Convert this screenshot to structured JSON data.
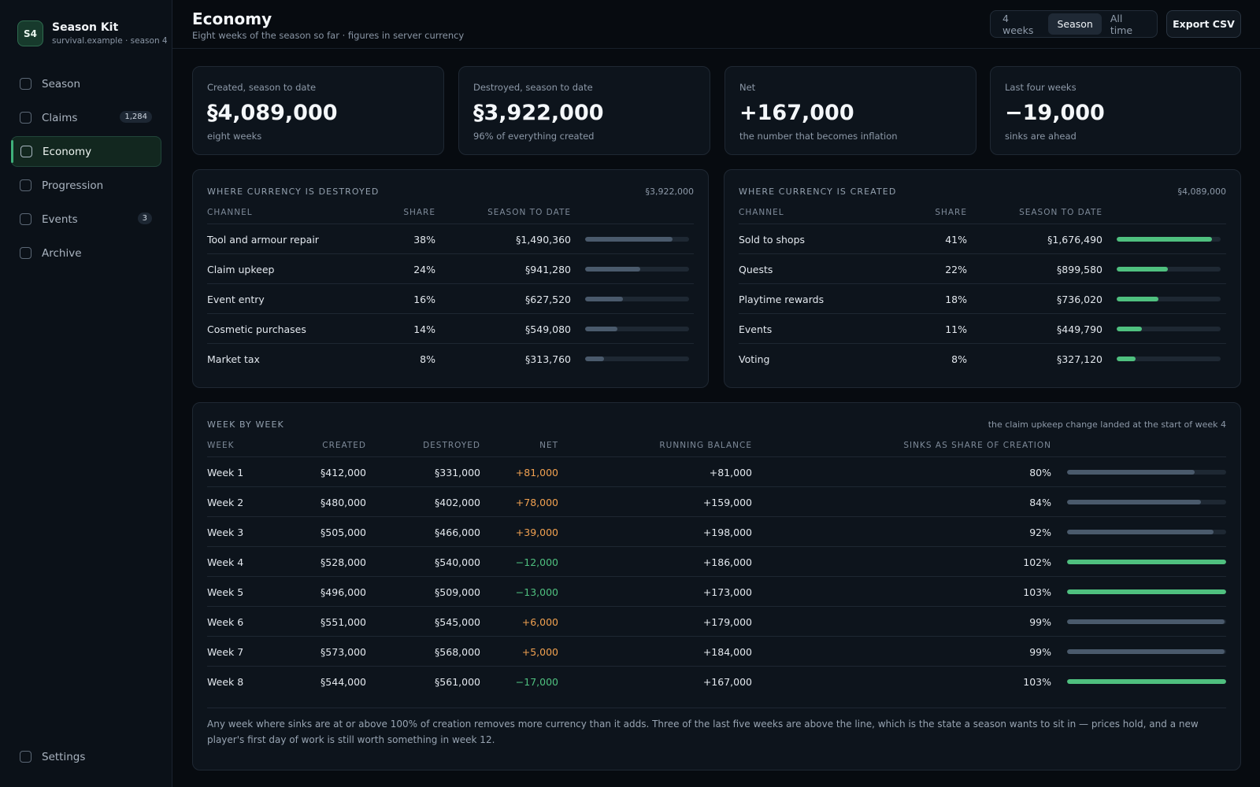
{
  "brand": {
    "badge": "S4",
    "name": "Season Kit",
    "sub": "survival.example · season 4"
  },
  "nav": [
    {
      "label": "Season",
      "count": null,
      "active": false
    },
    {
      "label": "Claims",
      "count": "1,284",
      "active": false
    },
    {
      "label": "Economy",
      "count": null,
      "active": true
    },
    {
      "label": "Progression",
      "count": null,
      "active": false
    },
    {
      "label": "Events",
      "count": "3",
      "active": false
    },
    {
      "label": "Archive",
      "count": null,
      "active": false
    }
  ],
  "settings_label": "Settings",
  "header": {
    "title": "Economy",
    "subtitle": "Eight weeks of the season so far · figures in server currency",
    "ranges": [
      "4 weeks",
      "Season",
      "All time"
    ],
    "active_range": "Season",
    "export_label": "Export CSV"
  },
  "kpis": [
    {
      "label": "Created, season to date",
      "value": "§4,089,000",
      "note": "eight weeks"
    },
    {
      "label": "Destroyed, season to date",
      "value": "§3,922,000",
      "note": "96% of everything created"
    },
    {
      "label": "Net",
      "value": "+167,000",
      "note": "the number that becomes inflation"
    },
    {
      "label": "Last four weeks",
      "value": "−19,000",
      "note": "sinks are ahead"
    }
  ],
  "destroyed": {
    "title": "WHERE CURRENCY IS DESTROYED",
    "total": "§3,922,000",
    "headers": {
      "channel": "CHANNEL",
      "share": "SHARE",
      "std": "SEASON TO DATE"
    },
    "rows": [
      {
        "channel": "Tool and armour repair",
        "share": "38%",
        "amount": "§1,490,360",
        "fill": 0.84
      },
      {
        "channel": "Claim upkeep",
        "share": "24%",
        "amount": "§941,280",
        "fill": 0.53
      },
      {
        "channel": "Event entry",
        "share": "16%",
        "amount": "§627,520",
        "fill": 0.36
      },
      {
        "channel": "Cosmetic purchases",
        "share": "14%",
        "amount": "§549,080",
        "fill": 0.31
      },
      {
        "channel": "Market tax",
        "share": "8%",
        "amount": "§313,760",
        "fill": 0.18
      }
    ]
  },
  "created": {
    "title": "WHERE CURRENCY IS CREATED",
    "total": "§4,089,000",
    "headers": {
      "channel": "CHANNEL",
      "share": "SHARE",
      "std": "SEASON TO DATE"
    },
    "rows": [
      {
        "channel": "Sold to shops",
        "share": "41%",
        "amount": "§1,676,490",
        "fill": 0.92
      },
      {
        "channel": "Quests",
        "share": "22%",
        "amount": "§899,580",
        "fill": 0.49
      },
      {
        "channel": "Playtime rewards",
        "share": "18%",
        "amount": "§736,020",
        "fill": 0.4
      },
      {
        "channel": "Events",
        "share": "11%",
        "amount": "§449,790",
        "fill": 0.24
      },
      {
        "channel": "Voting",
        "share": "8%",
        "amount": "§327,120",
        "fill": 0.18
      }
    ]
  },
  "weekly": {
    "title": "WEEK BY WEEK",
    "note": "the claim upkeep change landed at the start of week 4",
    "headers": {
      "week": "WEEK",
      "created": "CREATED",
      "destroyed": "DESTROYED",
      "net": "NET",
      "balance": "RUNNING BALANCE",
      "sinks": "SINKS AS SHARE OF CREATION"
    },
    "rows": [
      {
        "week": "Week 1",
        "created": "§412,000",
        "destroyed": "§331,000",
        "net": "+81,000",
        "balance": "+81,000",
        "pct": "80%",
        "fill": 0.8
      },
      {
        "week": "Week 2",
        "created": "§480,000",
        "destroyed": "§402,000",
        "net": "+78,000",
        "balance": "+159,000",
        "pct": "84%",
        "fill": 0.84
      },
      {
        "week": "Week 3",
        "created": "§505,000",
        "destroyed": "§466,000",
        "net": "+39,000",
        "balance": "+198,000",
        "pct": "92%",
        "fill": 0.92
      },
      {
        "week": "Week 4",
        "created": "§528,000",
        "destroyed": "§540,000",
        "net": "−12,000",
        "balance": "+186,000",
        "pct": "102%",
        "fill": 1.0
      },
      {
        "week": "Week 5",
        "created": "§496,000",
        "destroyed": "§509,000",
        "net": "−13,000",
        "balance": "+173,000",
        "pct": "103%",
        "fill": 1.0
      },
      {
        "week": "Week 6",
        "created": "§551,000",
        "destroyed": "§545,000",
        "net": "+6,000",
        "balance": "+179,000",
        "pct": "99%",
        "fill": 0.99
      },
      {
        "week": "Week 7",
        "created": "§573,000",
        "destroyed": "§568,000",
        "net": "+5,000",
        "balance": "+184,000",
        "pct": "99%",
        "fill": 0.99
      },
      {
        "week": "Week 8",
        "created": "§544,000",
        "destroyed": "§561,000",
        "net": "−17,000",
        "balance": "+167,000",
        "pct": "103%",
        "fill": 1.0
      }
    ],
    "footnote": "Any week where sinks are at or above 100% of creation removes more currency than it adds. Three of the last five weeks are above the line, which is the state a season wants to sit in — prices hold, and a new player's first day of work is still worth something in week 12."
  },
  "colors": {
    "accent": "#4fc07f",
    "positive_net": "#f0a050",
    "negative_net": "#4fc07f",
    "bar_neutral": "#4a5a6c"
  }
}
